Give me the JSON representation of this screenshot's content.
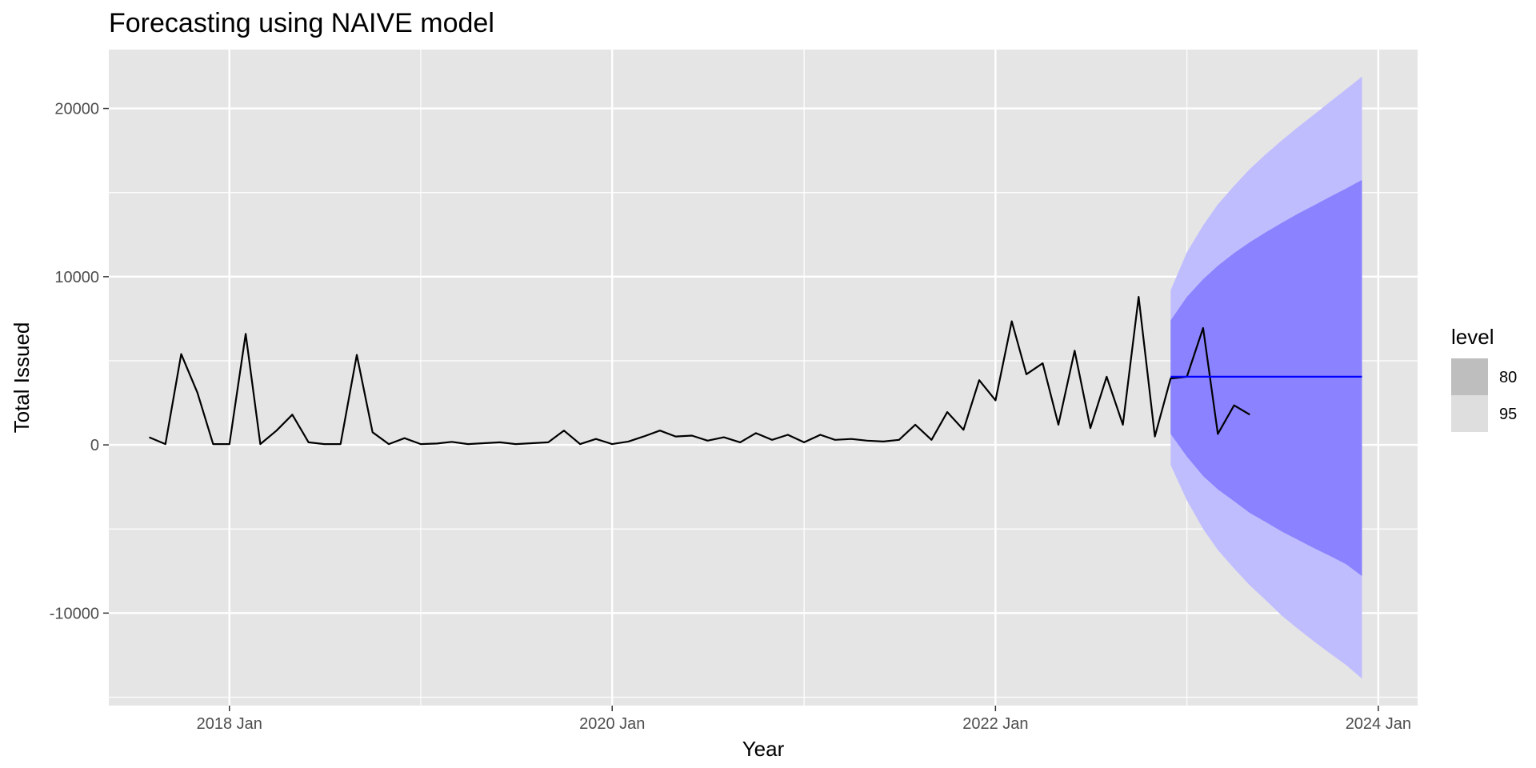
{
  "chart_data": {
    "type": "line",
    "title": "Forecasting using NAIVE model",
    "xlabel": "Year",
    "ylabel": "Total Issued",
    "xlim": [
      "2017-05-16",
      "2024-03-16"
    ],
    "ylim": [
      -15500,
      23500
    ],
    "x_ticks": [
      {
        "date": "2018-01-01",
        "label": "2018 Jan"
      },
      {
        "date": "2020-01-01",
        "label": "2020 Jan"
      },
      {
        "date": "2022-01-01",
        "label": "2022 Jan"
      },
      {
        "date": "2024-01-01",
        "label": "2024 Jan"
      }
    ],
    "x_minor_dates": [
      "2019-01-01",
      "2021-01-01",
      "2023-01-01"
    ],
    "y_ticks": [
      -10000,
      0,
      10000,
      20000
    ],
    "y_minor": [
      -15000,
      -5000,
      5000,
      15000
    ],
    "grid": true,
    "legend": {
      "title": "level",
      "placement": "right",
      "entries": [
        "80",
        "95"
      ]
    },
    "colors": {
      "panel": "#e5e5e5",
      "grid": "#ffffff",
      "series": "#000000",
      "forecast": "#0000ff",
      "band80": "#8a82ff",
      "band95": "#c0bdff",
      "legend80": "#bebebe",
      "legend95": "#dedede"
    },
    "series": [
      {
        "type": "line",
        "dates": [
          "2017-08",
          "2017-09",
          "2017-10",
          "2017-11",
          "2017-12",
          "2018-01",
          "2018-02",
          "2018-03",
          "2018-04",
          "2018-05",
          "2018-06",
          "2018-07",
          "2018-08",
          "2018-09",
          "2018-10",
          "2018-11",
          "2018-12",
          "2019-01",
          "2019-02",
          "2019-03",
          "2019-04",
          "2019-05",
          "2019-06",
          "2019-07",
          "2019-08",
          "2019-09",
          "2019-10",
          "2019-11",
          "2019-12",
          "2020-01",
          "2020-02",
          "2020-03",
          "2020-04",
          "2020-05",
          "2020-06",
          "2020-07",
          "2020-08",
          "2020-09",
          "2020-10",
          "2020-11",
          "2020-12",
          "2021-01",
          "2021-02",
          "2021-03",
          "2021-04",
          "2021-05",
          "2021-06",
          "2021-07",
          "2021-08",
          "2021-09",
          "2021-10",
          "2021-11",
          "2021-12",
          "2022-01",
          "2022-02",
          "2022-03",
          "2022-04",
          "2022-05",
          "2022-06",
          "2022-07",
          "2022-08",
          "2022-09",
          "2022-10",
          "2022-11",
          "2022-12",
          "2023-01",
          "2023-02",
          "2023-03",
          "2023-04",
          "2023-05"
        ],
        "values": [
          450,
          50,
          5400,
          3100,
          50,
          50,
          6600,
          50,
          850,
          1800,
          150,
          50,
          50,
          5350,
          750,
          50,
          400,
          50,
          80,
          180,
          50,
          100,
          150,
          50,
          100,
          150,
          850,
          50,
          350,
          50,
          200,
          500,
          850,
          500,
          550,
          250,
          450,
          150,
          700,
          300,
          600,
          150,
          600,
          300,
          350,
          250,
          200,
          300,
          1200,
          300,
          1950,
          900,
          3850,
          2650,
          7350,
          4200,
          4850,
          1200,
          5600,
          1000,
          4050,
          1200,
          8800,
          500,
          3950,
          4050,
          6950,
          650,
          2350,
          1800
        ]
      },
      {
        "type": "forecast",
        "dates": [
          "2022-12",
          "2023-12"
        ],
        "values": [
          4050,
          4050
        ]
      }
    ],
    "bands": [
      {
        "level": "95",
        "dates": [
          "2022-12",
          "2023-01",
          "2023-02",
          "2023-03",
          "2023-04",
          "2023-05",
          "2023-06",
          "2023-07",
          "2023-08",
          "2023-09",
          "2023-10",
          "2023-11",
          "2023-12"
        ],
        "upper": [
          9200,
          11450,
          13050,
          14300,
          15400,
          16400,
          17300,
          18100,
          18900,
          19650,
          20400,
          21150,
          21900
        ],
        "lower": [
          -1200,
          -3300,
          -5000,
          -6250,
          -7350,
          -8350,
          -9250,
          -10150,
          -10950,
          -11700,
          -12400,
          -13100,
          -13900
        ]
      },
      {
        "level": "80",
        "dates": [
          "2022-12",
          "2023-01",
          "2023-02",
          "2023-03",
          "2023-04",
          "2023-05",
          "2023-06",
          "2023-07",
          "2023-08",
          "2023-09",
          "2023-10",
          "2023-11",
          "2023-12"
        ],
        "upper": [
          7400,
          8800,
          9850,
          10650,
          11400,
          12050,
          12650,
          13200,
          13750,
          14250,
          14750,
          15250,
          15750
        ],
        "lower": [
          650,
          -700,
          -1850,
          -2650,
          -3350,
          -4050,
          -4600,
          -5150,
          -5650,
          -6150,
          -6600,
          -7100,
          -7800
        ]
      }
    ]
  }
}
